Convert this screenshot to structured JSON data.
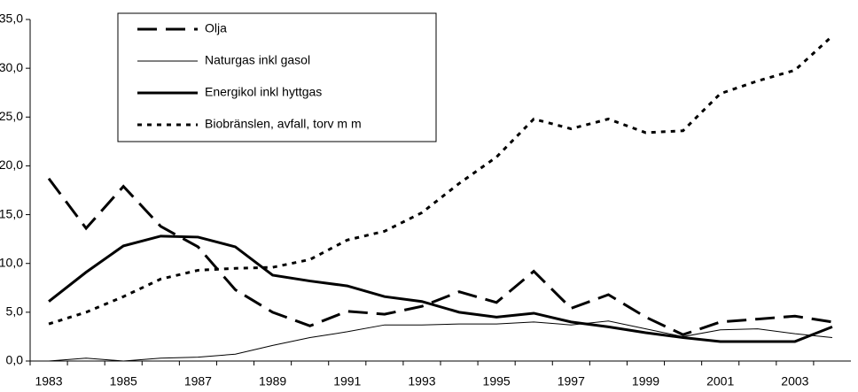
{
  "chart_data": {
    "type": "line",
    "categories": [
      "1983",
      null,
      "1985",
      null,
      "1987",
      null,
      "1989",
      null,
      "1991",
      null,
      "1993",
      null,
      "1995",
      null,
      "1997",
      null,
      "1999",
      null,
      "2001",
      null,
      "2003",
      null
    ],
    "series": [
      {
        "name": "Olja",
        "color": "#000000",
        "style": "dashed",
        "width": 3,
        "values": [
          18.7,
          13.6,
          17.9,
          13.8,
          11.7,
          7.3,
          5.0,
          3.6,
          5.1,
          4.8,
          5.6,
          7.1,
          6.0,
          9.2,
          5.4,
          6.8,
          4.5,
          2.7,
          4.0,
          4.3,
          4.6,
          4.0
        ]
      },
      {
        "name": "Naturgas inkl gasol",
        "color": "#000000",
        "style": "solid",
        "width": 1,
        "values": [
          0.0,
          0.3,
          0.0,
          0.3,
          0.4,
          0.7,
          1.6,
          2.4,
          3.0,
          3.7,
          3.7,
          3.8,
          3.8,
          4.0,
          3.7,
          4.1,
          3.3,
          2.5,
          3.2,
          3.3,
          2.8,
          2.4
        ]
      },
      {
        "name": "Energikol inkl hyttgas",
        "color": "#000000",
        "style": "solid",
        "width": 3,
        "values": [
          6.1,
          9.1,
          11.8,
          12.8,
          12.7,
          11.7,
          8.8,
          8.2,
          7.7,
          6.6,
          6.1,
          5.0,
          4.5,
          4.9,
          4.0,
          3.5,
          2.9,
          2.4,
          2.0,
          2.0,
          2.0,
          3.5
        ]
      },
      {
        "name": "Biobränslen, avfall, torv m m",
        "color": "#000000",
        "style": "dotted",
        "width": 3,
        "values": [
          3.8,
          5.0,
          6.6,
          8.4,
          9.3,
          9.5,
          9.6,
          10.4,
          12.4,
          13.3,
          15.2,
          18.2,
          20.9,
          24.8,
          23.8,
          24.8,
          23.4,
          23.6,
          27.4,
          28.7,
          29.8,
          33.3
        ]
      }
    ],
    "ylim": [
      0,
      35
    ],
    "yticks": [
      {
        "value": 0,
        "label": "0,0"
      },
      {
        "value": 5,
        "label": "5,0"
      },
      {
        "value": 10,
        "label": "10,0"
      },
      {
        "value": 15,
        "label": "15,0"
      },
      {
        "value": 20,
        "label": "20,0"
      },
      {
        "value": 25,
        "label": "25,0"
      },
      {
        "value": 30,
        "label": "30,0"
      },
      {
        "value": 35,
        "label": "35,0"
      }
    ],
    "legend": "top-left"
  }
}
